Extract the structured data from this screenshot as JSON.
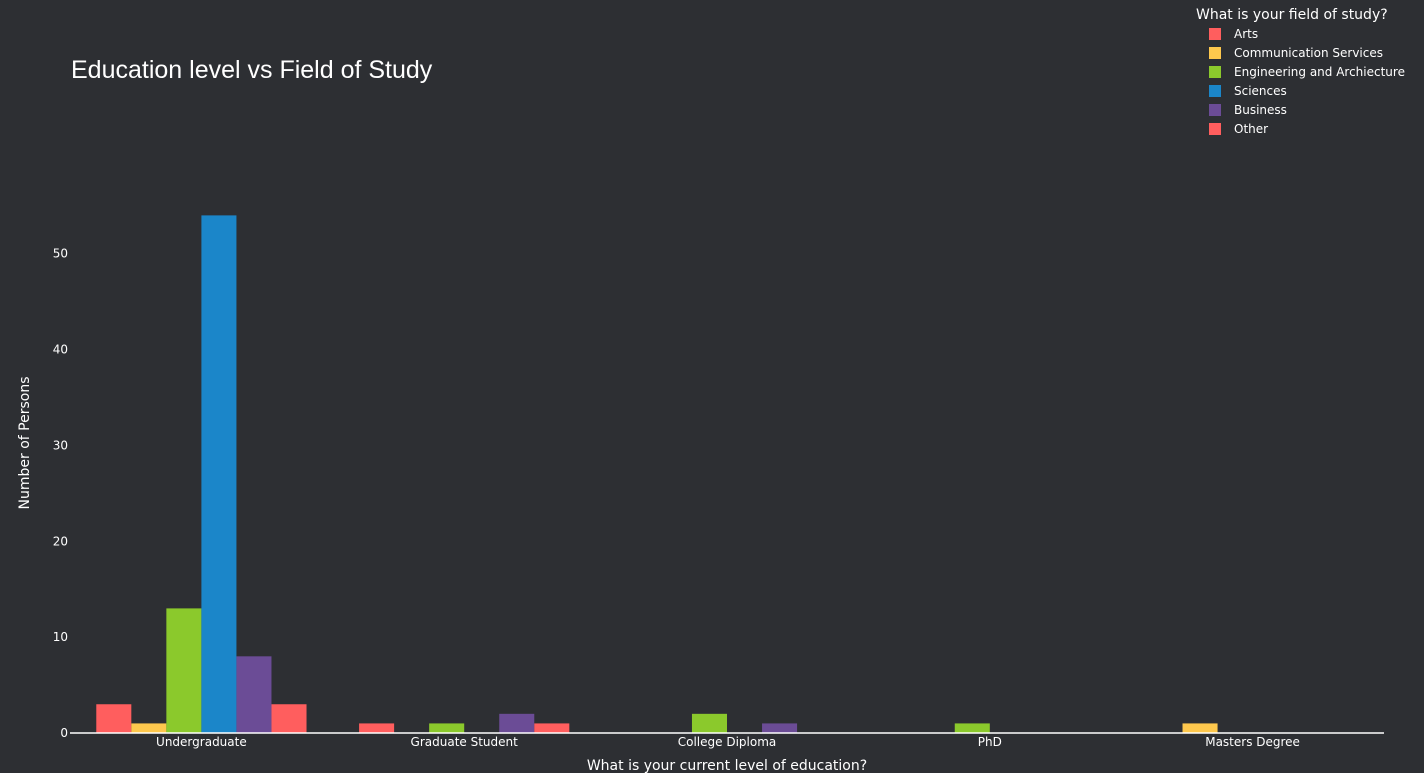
{
  "chart_data": {
    "type": "bar",
    "title": "Education level vs Field of Study",
    "xlabel": "What is your current level of education?",
    "ylabel": "Number of Persons",
    "categories": [
      "Undergraduate",
      "Graduate Student",
      "College Diploma",
      "PhD",
      "Masters Degree"
    ],
    "ylim": [
      0,
      57.9
    ],
    "yticks": [
      0,
      10,
      20,
      30,
      40,
      50
    ],
    "grid": false,
    "legend": {
      "title": "What is your field of study?",
      "placement": "top-right"
    },
    "series": [
      {
        "name": "Arts",
        "color": "#ff5e5e",
        "values": [
          3,
          1,
          0,
          0,
          0
        ]
      },
      {
        "name": "Communication Services",
        "color": "#fec84d",
        "values": [
          1,
          0,
          0,
          0,
          1
        ]
      },
      {
        "name": "Engineering and Archiecture",
        "color": "#8bc92c",
        "values": [
          13,
          1,
          2,
          1,
          0
        ]
      },
      {
        "name": "Sciences",
        "color": "#1b86c9",
        "values": [
          54,
          0,
          0,
          0,
          0
        ]
      },
      {
        "name": "Business",
        "color": "#6b4c96",
        "values": [
          8,
          2,
          1,
          0,
          0
        ]
      },
      {
        "name": "Other",
        "color": "#ff5e5e",
        "values": [
          3,
          1,
          0,
          0,
          0
        ]
      }
    ]
  }
}
